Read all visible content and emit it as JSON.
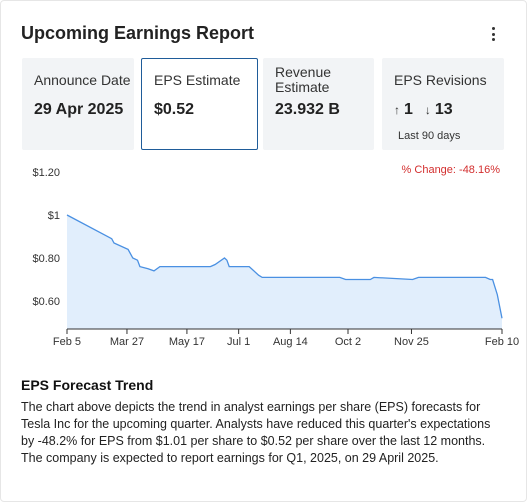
{
  "card": {
    "title": "Upcoming Earnings Report",
    "menu_icon": "more-vertical-icon"
  },
  "tiles": {
    "announce": {
      "label": "Announce Date",
      "value": "29 Apr 2025"
    },
    "eps": {
      "label": "EPS Estimate",
      "value": "$0.52",
      "selected": true
    },
    "revenue": {
      "label": "Revenue Estimate",
      "value": "23.932 B"
    },
    "revisions": {
      "label": "EPS Revisions",
      "up_icon": "arrow-up-icon",
      "up_arrow": "↑",
      "up": "1",
      "down_icon": "arrow-down-icon",
      "down_arrow": "↓",
      "down": "13",
      "sub": "Last 90 days"
    }
  },
  "change_label": "% Change: -48.16%",
  "colors": {
    "accent": "#1f5c99",
    "line": "#4a90e2",
    "fill": "#e1eefc",
    "negative": "#d32f2f",
    "tile_bg": "#f2f4f6"
  },
  "chart_data": {
    "type": "area",
    "y_ticks": [
      "$1.20",
      "$1",
      "$0.80",
      "$0.60"
    ],
    "y_tick_values": [
      1.2,
      1.0,
      0.8,
      0.6
    ],
    "ylim": [
      0.47,
      1.2
    ],
    "x_ticks": [
      "Feb 5",
      "Mar 27",
      "May 17",
      "Jul 1",
      "Aug 14",
      "Oct 2",
      "Nov 25",
      "Feb 10"
    ],
    "x_tick_days": [
      0,
      51,
      102,
      146,
      190,
      239,
      293,
      370
    ],
    "xlim": [
      0,
      370
    ],
    "x": [
      0,
      38,
      40,
      52,
      56,
      60,
      62,
      69,
      74,
      79,
      80,
      122,
      126,
      134,
      136,
      138,
      146,
      151,
      155,
      163,
      166,
      169,
      205,
      232,
      237,
      253,
      258,
      261,
      294,
      299,
      303,
      356,
      360,
      362,
      366,
      370
    ],
    "y": [
      1.0,
      0.89,
      0.87,
      0.84,
      0.8,
      0.79,
      0.76,
      0.75,
      0.74,
      0.76,
      0.76,
      0.76,
      0.77,
      0.8,
      0.79,
      0.76,
      0.76,
      0.76,
      0.76,
      0.72,
      0.71,
      0.71,
      0.71,
      0.71,
      0.7,
      0.7,
      0.7,
      0.71,
      0.7,
      0.71,
      0.71,
      0.71,
      0.7,
      0.7,
      0.63,
      0.52
    ],
    "grid": false,
    "legend": "none"
  },
  "description": {
    "title": "EPS Forecast Trend",
    "body": "The chart above depicts the trend in analyst earnings per share (EPS) forecasts for Tesla Inc for the upcoming quarter. Analysts have reduced this quarter's expectations by -48.2% for EPS from $1.01 per share to $0.52 per share over the last 12 months. The company is expected to report earnings for Q1, 2025, on 29 April 2025."
  }
}
